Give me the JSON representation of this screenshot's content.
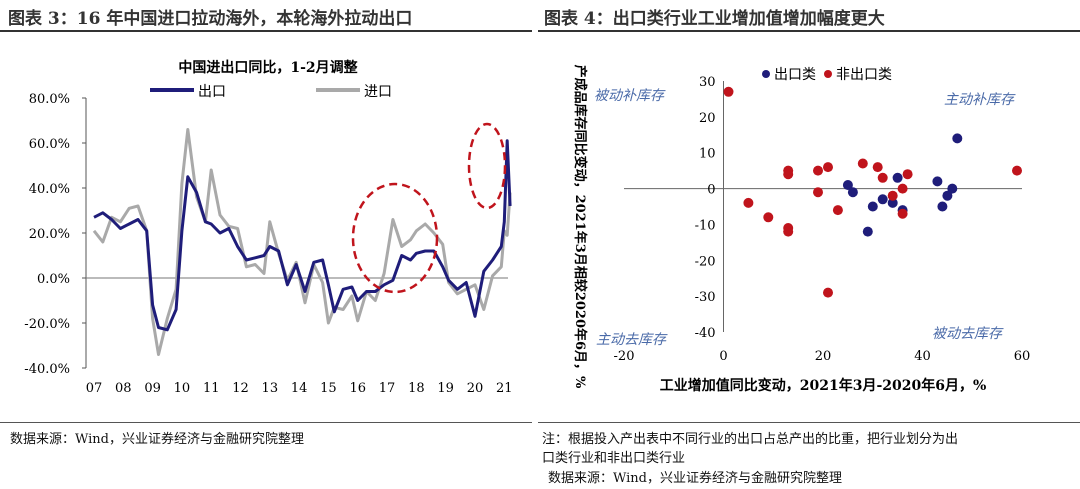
{
  "header": {
    "left_title": "图表 3：16 年中国进口拉动海外，本轮海外拉动出口",
    "right_title": "图表 4：出口类行业工业增加值增加幅度更大"
  },
  "footer": {
    "left_source": "数据来源：Wind，兴业证券经济与金融研究院整理",
    "right_note_line1": "注：根据投入产出表中不同行业的出口占总产出的比重，把行业划分为出",
    "right_note_line2": "口类行业和非出口类行业",
    "right_source": "数据来源：Wind，兴业证券经济与金融研究院整理"
  },
  "chart_data": [
    {
      "type": "line",
      "title": "中国进出口同比，1-2月调整",
      "x": [
        "07",
        "08",
        "09",
        "10",
        "11",
        "12",
        "13",
        "14",
        "15",
        "16",
        "17",
        "18",
        "19",
        "20",
        "21"
      ],
      "y_ticks": [
        "80.0%",
        "60.0%",
        "40.0%",
        "20.0%",
        "0.0%",
        "-20.0%",
        "-40.0%"
      ],
      "ylim": [
        -40,
        80
      ],
      "legend": "top-right",
      "series": [
        {
          "name": "出口",
          "color": "#1f1d7a",
          "values": [
            [
              2007.0,
              27
            ],
            [
              2007.3,
              29
            ],
            [
              2007.6,
              26
            ],
            [
              2007.9,
              22
            ],
            [
              2008.2,
              24
            ],
            [
              2008.5,
              26
            ],
            [
              2008.8,
              21
            ],
            [
              2009.0,
              -12
            ],
            [
              2009.2,
              -22
            ],
            [
              2009.5,
              -23
            ],
            [
              2009.8,
              -14
            ],
            [
              2010.0,
              21
            ],
            [
              2010.2,
              45
            ],
            [
              2010.5,
              38
            ],
            [
              2010.8,
              25
            ],
            [
              2011.0,
              24
            ],
            [
              2011.3,
              20
            ],
            [
              2011.6,
              22
            ],
            [
              2011.9,
              14
            ],
            [
              2012.2,
              8
            ],
            [
              2012.5,
              9
            ],
            [
              2012.8,
              10
            ],
            [
              2013.0,
              14
            ],
            [
              2013.3,
              12
            ],
            [
              2013.6,
              -3
            ],
            [
              2013.9,
              6
            ],
            [
              2014.2,
              -6
            ],
            [
              2014.5,
              7
            ],
            [
              2014.8,
              8
            ],
            [
              2015.0,
              -3
            ],
            [
              2015.2,
              -15
            ],
            [
              2015.5,
              -5
            ],
            [
              2015.8,
              -4
            ],
            [
              2016.0,
              -10
            ],
            [
              2016.3,
              -6
            ],
            [
              2016.6,
              -6
            ],
            [
              2016.9,
              -3
            ],
            [
              2017.2,
              -1
            ],
            [
              2017.5,
              10
            ],
            [
              2017.8,
              8
            ],
            [
              2018.0,
              11
            ],
            [
              2018.3,
              12
            ],
            [
              2018.6,
              12
            ],
            [
              2018.9,
              5
            ],
            [
              2019.1,
              -1
            ],
            [
              2019.4,
              -5
            ],
            [
              2019.7,
              -2
            ],
            [
              2020.0,
              -17
            ],
            [
              2020.3,
              3
            ],
            [
              2020.6,
              8
            ],
            [
              2020.9,
              14
            ],
            [
              2021.0,
              25
            ],
            [
              2021.1,
              61
            ],
            [
              2021.2,
              32
            ]
          ]
        },
        {
          "name": "进口",
          "color": "#a9a9a9",
          "values": [
            [
              2007.0,
              21
            ],
            [
              2007.3,
              16
            ],
            [
              2007.6,
              27
            ],
            [
              2007.9,
              25
            ],
            [
              2008.2,
              31
            ],
            [
              2008.5,
              32
            ],
            [
              2008.8,
              21
            ],
            [
              2009.0,
              -18
            ],
            [
              2009.2,
              -34
            ],
            [
              2009.5,
              -18
            ],
            [
              2009.8,
              -5
            ],
            [
              2010.0,
              42
            ],
            [
              2010.2,
              66
            ],
            [
              2010.5,
              36
            ],
            [
              2010.8,
              25
            ],
            [
              2011.0,
              48
            ],
            [
              2011.3,
              28
            ],
            [
              2011.6,
              23
            ],
            [
              2011.9,
              22
            ],
            [
              2012.2,
              5
            ],
            [
              2012.5,
              6
            ],
            [
              2012.8,
              2
            ],
            [
              2013.0,
              25
            ],
            [
              2013.3,
              11
            ],
            [
              2013.6,
              -1
            ],
            [
              2013.9,
              7
            ],
            [
              2014.2,
              -11
            ],
            [
              2014.5,
              6
            ],
            [
              2014.8,
              -2
            ],
            [
              2015.0,
              -20
            ],
            [
              2015.2,
              -13
            ],
            [
              2015.5,
              -14
            ],
            [
              2015.8,
              -8
            ],
            [
              2016.0,
              -19
            ],
            [
              2016.3,
              -6
            ],
            [
              2016.6,
              -10
            ],
            [
              2016.9,
              2
            ],
            [
              2017.2,
              26
            ],
            [
              2017.5,
              14
            ],
            [
              2017.8,
              17
            ],
            [
              2018.0,
              21
            ],
            [
              2018.3,
              24
            ],
            [
              2018.6,
              20
            ],
            [
              2018.9,
              15
            ],
            [
              2019.1,
              -2
            ],
            [
              2019.4,
              -7
            ],
            [
              2019.7,
              -5
            ],
            [
              2020.0,
              -3
            ],
            [
              2020.3,
              -14
            ],
            [
              2020.6,
              1
            ],
            [
              2020.9,
              5
            ],
            [
              2021.0,
              21
            ],
            [
              2021.1,
              19
            ],
            [
              2021.2,
              38
            ]
          ]
        }
      ]
    },
    {
      "type": "scatter",
      "xlabel": "工业增加值同比变动，2021年3月-2020年6月，%",
      "ylabel": "产成品库存同比变动，2021年3月相较2020年6月，%",
      "xlim": [
        -20,
        60
      ],
      "ylim": [
        -40,
        30
      ],
      "x_ticks": [
        "-20",
        "0",
        "20",
        "40",
        "60"
      ],
      "y_ticks": [
        "30",
        "20",
        "10",
        "0",
        "-10",
        "-20",
        "-30",
        "-40"
      ],
      "legend": "top",
      "quadrant_labels": {
        "top_left": "被动补库存",
        "top_right": "主动补库存",
        "bottom_left": "主动去库存",
        "bottom_right": "被动去库存"
      },
      "series": [
        {
          "name": "出口类",
          "color": "#1f1d7a",
          "points": [
            [
              25,
              1
            ],
            [
              26,
              -1
            ],
            [
              29,
              -12
            ],
            [
              30,
              -5
            ],
            [
              32,
              -3
            ],
            [
              34,
              -4
            ],
            [
              35,
              3
            ],
            [
              36,
              -6
            ],
            [
              43,
              2
            ],
            [
              44,
              -5
            ],
            [
              45,
              -2
            ],
            [
              46,
              0
            ],
            [
              47,
              14
            ]
          ]
        },
        {
          "name": "非出口类",
          "color": "#c0141c",
          "points": [
            [
              1,
              27
            ],
            [
              5,
              -4
            ],
            [
              9,
              -8
            ],
            [
              13,
              -11
            ],
            [
              13,
              -12
            ],
            [
              13,
              4
            ],
            [
              13,
              5
            ],
            [
              19,
              -1
            ],
            [
              19,
              5
            ],
            [
              21,
              6
            ],
            [
              21,
              -29
            ],
            [
              23,
              -6
            ],
            [
              28,
              7
            ],
            [
              31,
              6
            ],
            [
              32,
              3
            ],
            [
              34,
              -2
            ],
            [
              36,
              -7
            ],
            [
              36,
              0
            ],
            [
              37,
              4
            ],
            [
              59,
              5
            ]
          ]
        }
      ]
    }
  ]
}
